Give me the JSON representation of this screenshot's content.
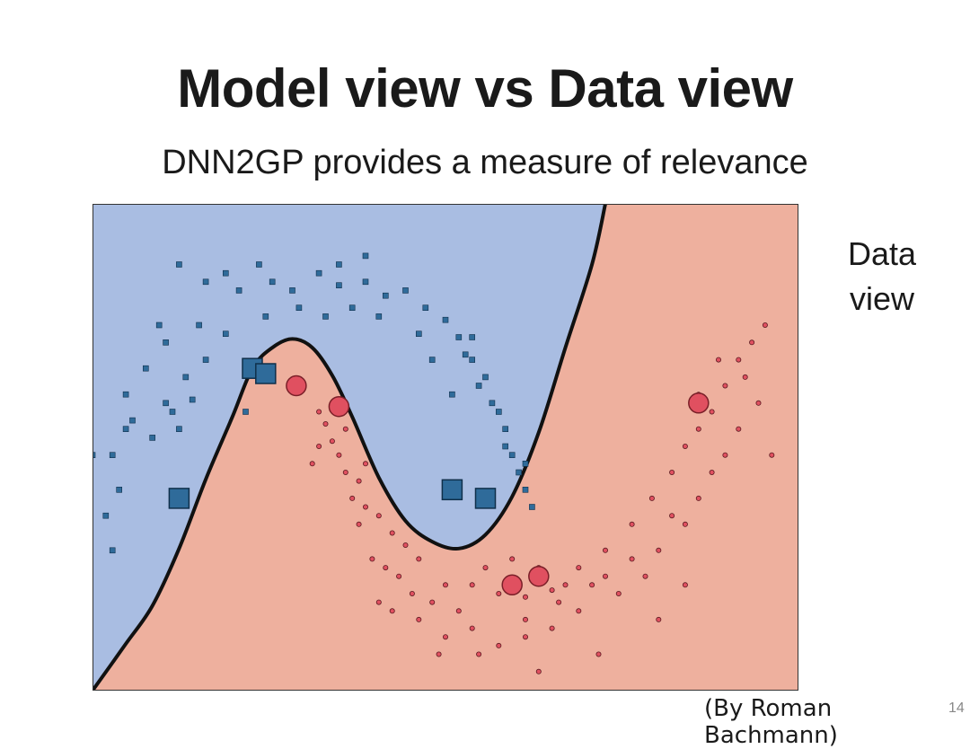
{
  "slide": {
    "title": "Model view vs Data view",
    "subtitle": "DNN2GP provides a measure of relevance",
    "side_label_line1": "Data",
    "side_label_line2": "view",
    "credit": "(By Roman Bachmann)",
    "page_number": "14"
  },
  "colors": {
    "region_class_0": "#a9bde2",
    "region_class_1": "#eeb09e",
    "boundary": "#111111",
    "class_0_marker": "#2f6b9a",
    "class_1_marker": "#e05060"
  },
  "chart_data": {
    "type": "scatter",
    "title": "",
    "xlabel": "",
    "ylabel": "",
    "xlim": [
      -2.25,
      3.05
    ],
    "ylim": [
      -1.06,
      1.75
    ],
    "grid": false,
    "legend": "none",
    "decision_boundary": [
      [
        -2.25,
        -1.06
      ],
      [
        -2.0,
        -0.79
      ],
      [
        -1.8,
        -0.57
      ],
      [
        -1.6,
        -0.24
      ],
      [
        -1.4,
        0.16
      ],
      [
        -1.2,
        0.52
      ],
      [
        -1.05,
        0.8
      ],
      [
        -0.9,
        0.92
      ],
      [
        -0.75,
        0.97
      ],
      [
        -0.6,
        0.92
      ],
      [
        -0.45,
        0.76
      ],
      [
        -0.3,
        0.52
      ],
      [
        -0.1,
        0.17
      ],
      [
        0.1,
        -0.08
      ],
      [
        0.3,
        -0.2
      ],
      [
        0.5,
        -0.24
      ],
      [
        0.7,
        -0.16
      ],
      [
        0.9,
        0.06
      ],
      [
        1.1,
        0.43
      ],
      [
        1.3,
        0.92
      ],
      [
        1.5,
        1.4
      ],
      [
        1.6,
        1.75
      ]
    ],
    "series": [
      {
        "class": 0,
        "marker": "square",
        "points": [
          [
            -1.6,
            1.4
          ],
          [
            -1.4,
            1.3
          ],
          [
            -1.25,
            1.35
          ],
          [
            -1.15,
            1.25
          ],
          [
            -1.0,
            1.4
          ],
          [
            -0.9,
            1.3
          ],
          [
            -0.75,
            1.25
          ],
          [
            -0.55,
            1.35
          ],
          [
            -0.4,
            1.28
          ],
          [
            -0.2,
            1.3
          ],
          [
            -0.05,
            1.22
          ],
          [
            0.1,
            1.25
          ],
          [
            0.25,
            1.15
          ],
          [
            0.4,
            1.08
          ],
          [
            0.5,
            0.98
          ],
          [
            0.6,
            0.85
          ],
          [
            0.65,
            0.7
          ],
          [
            0.75,
            0.6
          ],
          [
            0.85,
            0.45
          ],
          [
            0.9,
            0.3
          ],
          [
            0.95,
            0.2
          ],
          [
            1.0,
            0.1
          ],
          [
            -0.95,
            1.1
          ],
          [
            -0.7,
            1.15
          ],
          [
            -0.5,
            1.1
          ],
          [
            -0.3,
            1.15
          ],
          [
            -0.1,
            1.1
          ],
          [
            0.2,
            1.0
          ],
          [
            -1.25,
            1.0
          ],
          [
            -1.45,
            1.05
          ],
          [
            -1.7,
            0.95
          ],
          [
            -1.85,
            0.8
          ],
          [
            -2.0,
            0.65
          ],
          [
            -1.95,
            0.5
          ],
          [
            -2.1,
            0.3
          ],
          [
            -2.05,
            0.1
          ],
          [
            -2.15,
            -0.05
          ],
          [
            -1.7,
            0.6
          ],
          [
            -1.55,
            0.75
          ],
          [
            -1.4,
            0.85
          ],
          [
            -1.8,
            0.4
          ],
          [
            -1.65,
            0.55
          ],
          [
            -1.5,
            0.62
          ],
          [
            0.55,
            0.88
          ],
          [
            0.7,
            0.75
          ],
          [
            0.8,
            0.55
          ],
          [
            0.85,
            0.35
          ],
          [
            1.0,
            0.25
          ],
          [
            0.45,
            0.65
          ],
          [
            0.3,
            0.85
          ],
          [
            -1.1,
            0.55
          ],
          [
            -2.0,
            0.45
          ],
          [
            -1.6,
            0.45
          ],
          [
            -2.25,
            0.3
          ],
          [
            0.6,
            0.98
          ],
          [
            1.05,
            0.0
          ],
          [
            -2.1,
            -0.25
          ],
          [
            -1.75,
            1.05
          ],
          [
            -0.4,
            1.4
          ],
          [
            -0.2,
            1.45
          ]
        ],
        "highlighted": [
          [
            -1.05,
            0.8
          ],
          [
            -1.6,
            0.05
          ],
          [
            -0.95,
            0.77
          ],
          [
            0.45,
            0.1
          ],
          [
            0.7,
            0.05
          ]
        ]
      },
      {
        "class": 1,
        "marker": "circle",
        "points": [
          [
            -0.55,
            0.55
          ],
          [
            -0.5,
            0.48
          ],
          [
            -0.45,
            0.38
          ],
          [
            -0.4,
            0.3
          ],
          [
            -0.35,
            0.2
          ],
          [
            -0.25,
            0.15
          ],
          [
            -0.2,
            0.0
          ],
          [
            -0.1,
            -0.05
          ],
          [
            0.0,
            -0.15
          ],
          [
            0.1,
            -0.22
          ],
          [
            -0.3,
            0.05
          ],
          [
            -0.15,
            -0.3
          ],
          [
            0.05,
            -0.4
          ],
          [
            0.15,
            -0.5
          ],
          [
            0.3,
            -0.55
          ],
          [
            0.4,
            -0.45
          ],
          [
            0.6,
            -0.45
          ],
          [
            0.8,
            -0.5
          ],
          [
            1.0,
            -0.52
          ],
          [
            1.2,
            -0.48
          ],
          [
            1.4,
            -0.35
          ],
          [
            1.6,
            -0.25
          ],
          [
            1.8,
            -0.1
          ],
          [
            1.95,
            0.05
          ],
          [
            2.1,
            0.2
          ],
          [
            2.2,
            0.35
          ],
          [
            2.3,
            0.45
          ],
          [
            2.4,
            0.55
          ],
          [
            2.5,
            0.7
          ],
          [
            2.6,
            0.85
          ],
          [
            2.7,
            0.95
          ],
          [
            2.8,
            1.05
          ],
          [
            2.75,
            0.6
          ],
          [
            2.6,
            0.45
          ],
          [
            2.5,
            0.3
          ],
          [
            2.4,
            0.2
          ],
          [
            2.3,
            0.05
          ],
          [
            2.2,
            -0.1
          ],
          [
            2.0,
            -0.25
          ],
          [
            1.8,
            -0.3
          ],
          [
            1.6,
            -0.4
          ],
          [
            1.4,
            -0.6
          ],
          [
            1.2,
            -0.7
          ],
          [
            1.0,
            -0.75
          ],
          [
            0.8,
            -0.8
          ],
          [
            0.6,
            -0.7
          ],
          [
            0.4,
            -0.75
          ],
          [
            0.2,
            -0.65
          ],
          [
            0.0,
            -0.6
          ],
          [
            -0.1,
            -0.55
          ],
          [
            -0.35,
            0.45
          ],
          [
            -0.55,
            0.35
          ],
          [
            -0.6,
            0.25
          ],
          [
            -0.25,
            -0.1
          ],
          [
            0.5,
            -0.6
          ],
          [
            0.7,
            -0.35
          ],
          [
            0.9,
            -0.3
          ],
          [
            1.1,
            -0.35
          ],
          [
            1.3,
            -0.45
          ],
          [
            1.5,
            -0.45
          ],
          [
            1.7,
            -0.5
          ],
          [
            1.9,
            -0.4
          ],
          [
            2.1,
            -0.05
          ],
          [
            2.45,
            0.85
          ],
          [
            2.65,
            0.75
          ],
          [
            2.85,
            0.3
          ],
          [
            -0.2,
            0.25
          ],
          [
            0.2,
            -0.3
          ],
          [
            1.25,
            -0.55
          ],
          [
            2.3,
            0.65
          ],
          [
            1.55,
            -0.85
          ],
          [
            1.1,
            -0.95
          ],
          [
            0.65,
            -0.85
          ],
          [
            0.35,
            -0.85
          ],
          [
            2.0,
            -0.65
          ],
          [
            2.2,
            -0.45
          ],
          [
            1.0,
            -0.65
          ],
          [
            -0.05,
            -0.35
          ]
        ],
        "highlighted": [
          [
            -0.72,
            0.7
          ],
          [
            -0.4,
            0.58
          ],
          [
            0.9,
            -0.45
          ],
          [
            1.1,
            -0.4
          ],
          [
            2.3,
            0.6
          ]
        ]
      }
    ]
  }
}
